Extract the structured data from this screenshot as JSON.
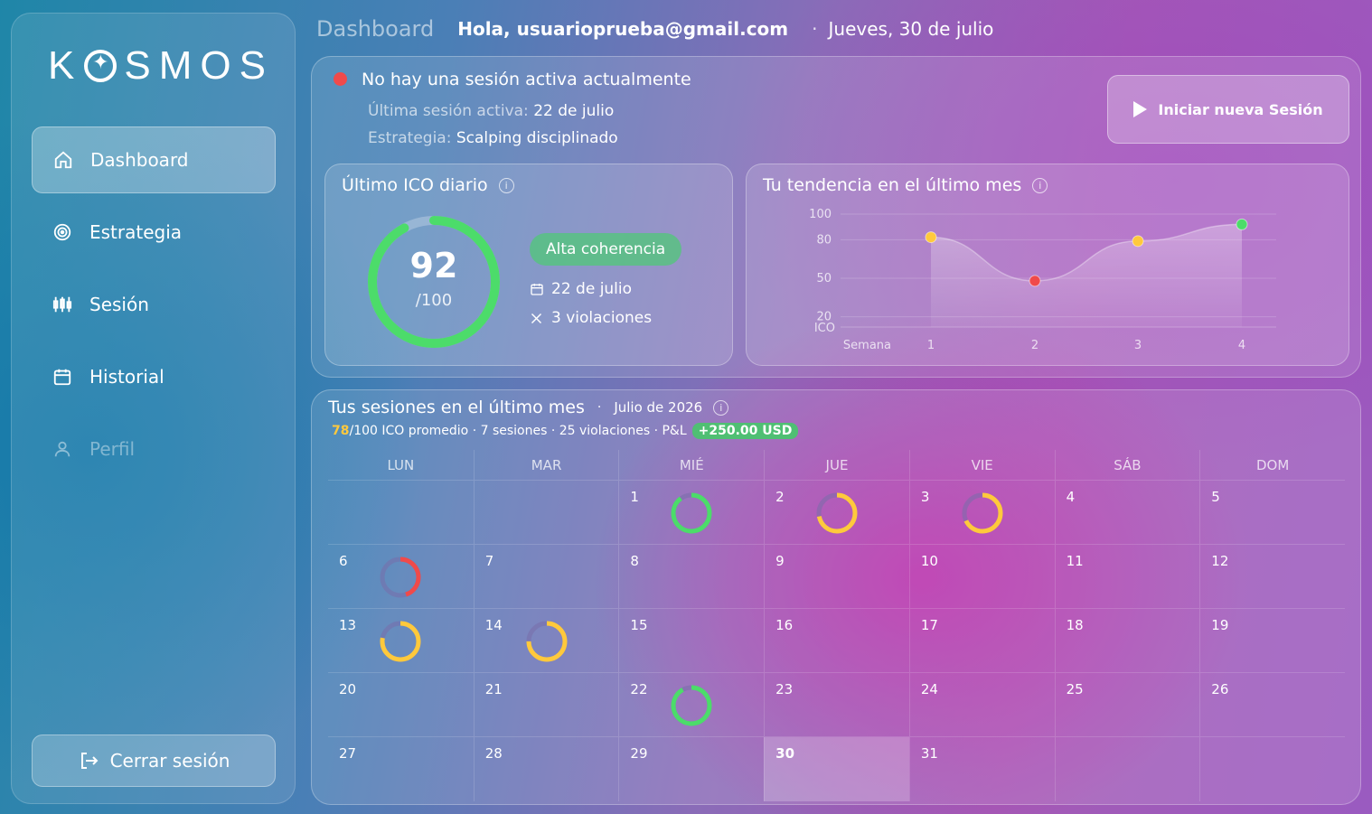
{
  "sidebar": {
    "logo": "KOSMOS",
    "items": [
      {
        "label": "Dashboard",
        "icon": "home-icon",
        "active": true
      },
      {
        "label": "Estrategia",
        "icon": "target-icon"
      },
      {
        "label": "Sesión",
        "icon": "candlestick-icon"
      },
      {
        "label": "Historial",
        "icon": "calendar-icon"
      },
      {
        "label": "Perfil",
        "icon": "user-icon",
        "disabled": true
      }
    ],
    "logout_label": "Cerrar sesión"
  },
  "header": {
    "crumb": "Dashboard",
    "greeting": "Hola, usuarioprueba@gmail.com",
    "separator": "·",
    "date": "Jueves, 30 de julio"
  },
  "session": {
    "status": "No hay una sesión activa actualmente",
    "last_label": "Última sesión activa:",
    "last_value": "22 de julio",
    "strategy_label": "Estrategia:",
    "strategy_value": "Scalping disciplinado",
    "start_button": "Iniciar nueva Sesión"
  },
  "ico_card": {
    "title": "Último ICO diario",
    "value": "92",
    "max": "/100",
    "fraction": 0.92,
    "badge": "Alta coherencia",
    "date": "22 de julio",
    "violations": "3 violaciones",
    "colors": {
      "ring": "#4cdc6a",
      "track": "rgba(255,255,255,0.25)"
    }
  },
  "trend_card": {
    "title": "Tu tendencia en el último mes"
  },
  "chart_data": {
    "type": "area",
    "title": "Tu tendencia en el último mes",
    "xlabel": "Semana",
    "ylabel": "ICO",
    "x": [
      1,
      2,
      3,
      4
    ],
    "values": [
      82,
      48,
      79,
      92
    ],
    "point_colors": [
      "#ffc93c",
      "#f04a4a",
      "#ffc93c",
      "#4cdc6a"
    ],
    "yticks": [
      20,
      50,
      80,
      100
    ],
    "ylim": [
      0,
      100
    ],
    "grid": true
  },
  "calendar": {
    "title": "Tus sesiones en el último mes",
    "separator": "·",
    "month": "Julio de 2026",
    "stats": {
      "avg": "78",
      "rest": "/100 ICO promedio · 7 sesiones · 25 violaciones · P&L",
      "pnl": "+250.00 USD"
    },
    "weekdays": [
      "LUN",
      "MAR",
      "MIÉ",
      "JUE",
      "VIE",
      "SÁB",
      "DOM"
    ],
    "start_offset": 2,
    "days_in_month": 31,
    "today": 30,
    "sessions": [
      {
        "day": 1,
        "ico": 90,
        "color": "#4cdc6a"
      },
      {
        "day": 2,
        "ico": 72,
        "color": "#ffc93c"
      },
      {
        "day": 3,
        "ico": 68,
        "color": "#ffc93c"
      },
      {
        "day": 6,
        "ico": 45,
        "color": "#f04a4a"
      },
      {
        "day": 13,
        "ico": 78,
        "color": "#ffc93c"
      },
      {
        "day": 14,
        "ico": 75,
        "color": "#ffc93c"
      },
      {
        "day": 22,
        "ico": 92,
        "color": "#4cdc6a"
      }
    ]
  }
}
